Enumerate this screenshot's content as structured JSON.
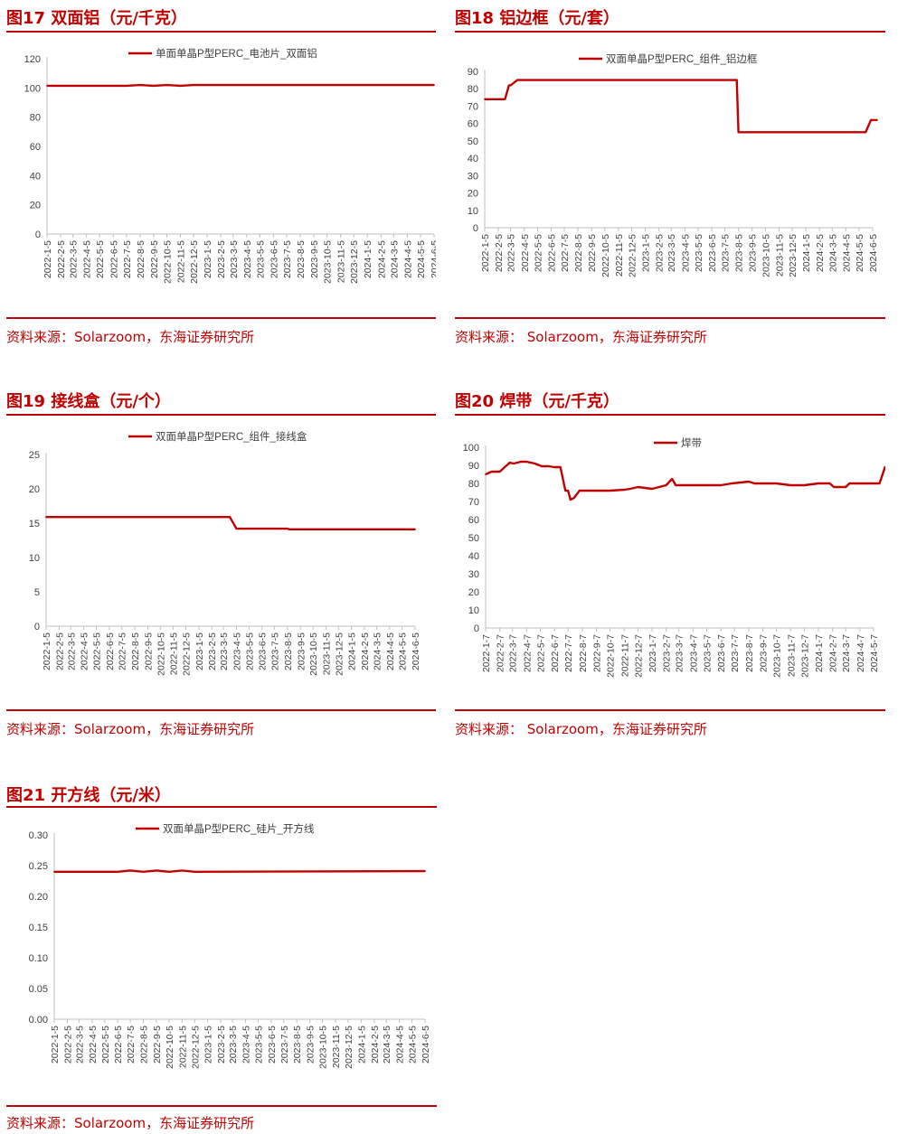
{
  "source_label": "资料来源：Solarzoom，东海证券研究所",
  "source_label_spaced": "资料来源：  Solarzoom，东海证券研究所",
  "colors": {
    "accent": "#c00000",
    "axis": "#bfbfbf",
    "text": "#404040"
  },
  "charts": [
    {
      "id": "fig17",
      "title": "图17  双面铝（元/千克）",
      "chart_data": {
        "type": "line",
        "series": [
          {
            "name": "单面单晶P型PERC_电池片_双面铝",
            "x": [
              "2022-1-5",
              "2022-7-5",
              "2022-8-5",
              "2022-9-5",
              "2022-10-5",
              "2022-11-5",
              "2022-12-5",
              "2024-6-5"
            ],
            "y": [
              101.5,
              101.5,
              102,
              101.5,
              102,
              101.5,
              102,
              102
            ]
          }
        ],
        "ylim": [
          0,
          120
        ],
        "yticks": [
          0,
          20,
          40,
          60,
          80,
          100,
          120
        ],
        "xticks": [
          "2022-1-5",
          "2022-2-5",
          "2022-3-5",
          "2022-4-5",
          "2022-5-5",
          "2022-6-5",
          "2022-7-5",
          "2022-8-5",
          "2022-9-5",
          "2022-10-5",
          "2022-11-5",
          "2022-12-5",
          "2023-1-5",
          "2023-2-5",
          "2023-3-5",
          "2023-4-5",
          "2023-5-5",
          "2023-6-5",
          "2023-7-5",
          "2023-8-5",
          "2023-9-5",
          "2023-10-5",
          "2023-11-5",
          "2023-12-5",
          "2024-1-5",
          "2024-2-5",
          "2024-3-5",
          "2024-4-5",
          "2024-5-5",
          "2024-6-5"
        ],
        "legend": "top"
      }
    },
    {
      "id": "fig18",
      "title": "图18  铝边框（元/套）",
      "chart_data": {
        "type": "line",
        "series": [
          {
            "name": "双面单晶P型PERC_组件_铝边框",
            "x": [
              "2022-1-5",
              "2022-2-20",
              "2022-3-1",
              "2022-3-5",
              "2022-3-20",
              "2023-8-1",
              "2023-8-5",
              "2024-5-20",
              "2024-6-1",
              "2024-6-15"
            ],
            "y": [
              74,
              74,
              82,
              82,
              85,
              85,
              55,
              55,
              62,
              62
            ]
          }
        ],
        "ylim": [
          0,
          90
        ],
        "yticks": [
          0,
          10,
          20,
          30,
          40,
          50,
          60,
          70,
          80,
          90
        ],
        "xticks": [
          "2022-1-5",
          "2022-2-5",
          "2022-3-5",
          "2022-4-5",
          "2022-5-5",
          "2022-6-5",
          "2022-7-5",
          "2022-8-5",
          "2022-9-5",
          "2022-10-5",
          "2022-11-5",
          "2022-12-5",
          "2023-1-5",
          "2023-2-5",
          "2023-3-5",
          "2023-4-5",
          "2023-5-5",
          "2023-6-5",
          "2023-7-5",
          "2023-8-5",
          "2023-9-5",
          "2023-10-5",
          "2023-11-5",
          "2023-12-5",
          "2024-1-5",
          "2024-2-5",
          "2024-3-5",
          "2024-4-5",
          "2024-5-5",
          "2024-6-5"
        ],
        "legend": "top"
      }
    },
    {
      "id": "fig19",
      "title": "图19  接线盒（元/个）",
      "chart_data": {
        "type": "line",
        "series": [
          {
            "name": "双面单晶P型PERC_组件_接线盒",
            "x": [
              "2022-1-5",
              "2023-3-20",
              "2023-4-5",
              "2023-8-5",
              "2023-8-10",
              "2024-6-5"
            ],
            "y": [
              15.9,
              15.9,
              14.2,
              14.2,
              14.1,
              14.1
            ]
          }
        ],
        "ylim": [
          0,
          25
        ],
        "yticks": [
          0,
          5,
          10,
          15,
          20,
          25
        ],
        "xticks": [
          "2022-1-5",
          "2022-2-5",
          "2022-3-5",
          "2022-4-5",
          "2022-5-5",
          "2022-6-5",
          "2022-7-5",
          "2022-8-5",
          "2022-9-5",
          "2022-10-5",
          "2022-11-5",
          "2022-12-5",
          "2023-1-5",
          "2023-2-5",
          "2023-3-5",
          "2023-4-5",
          "2023-5-5",
          "2023-6-5",
          "2023-7-5",
          "2023-8-5",
          "2023-9-5",
          "2023-10-5",
          "2023-11-5",
          "2023-12-5",
          "2024-1-5",
          "2024-2-5",
          "2024-3-5",
          "2024-4-5",
          "2024-5-5",
          "2024-6-5"
        ],
        "legend": "top"
      }
    },
    {
      "id": "fig20",
      "title": "图20  焊带（元/千克）",
      "chart_data": {
        "type": "line",
        "series": [
          {
            "name": "焊带",
            "x": [
              "2022-1-7",
              "2022-1-20",
              "2022-2-7",
              "2022-3-1",
              "2022-3-10",
              "2022-3-25",
              "2022-4-7",
              "2022-4-25",
              "2022-5-10",
              "2022-5-25",
              "2022-6-7",
              "2022-6-20",
              "2022-7-1",
              "2022-7-7",
              "2022-7-12",
              "2022-7-20",
              "2022-8-1",
              "2022-8-7",
              "2022-10-7",
              "2022-11-7",
              "2022-11-20",
              "2022-12-7",
              "2023-1-7",
              "2023-2-7",
              "2023-2-20",
              "2023-2-28",
              "2023-3-7",
              "2023-4-7",
              "2023-6-7",
              "2023-7-1",
              "2023-8-7",
              "2023-8-20",
              "2023-9-1",
              "2023-10-7",
              "2023-11-7",
              "2023-12-7",
              "2024-1-7",
              "2024-2-1",
              "2024-2-10",
              "2024-3-7",
              "2024-3-15",
              "2024-5-20",
              "2024-6-1",
              "2024-6-15"
            ],
            "y": [
              85,
              86.5,
              86.5,
              91.5,
              91,
              92,
              92,
              91,
              89.5,
              89.5,
              89,
              89,
              76,
              76,
              71,
              72,
              76,
              76,
              76,
              76.5,
              77,
              78,
              77,
              79,
              82.5,
              79,
              79,
              79,
              79,
              80,
              81,
              80,
              80,
              80,
              79,
              79,
              80,
              80,
              78,
              78,
              80,
              80,
              89,
              89
            ]
          }
        ],
        "ylim": [
          0,
          100
        ],
        "yticks": [
          0,
          10,
          20,
          30,
          40,
          50,
          60,
          70,
          80,
          90,
          100
        ],
        "xticks": [
          "2022-1-7",
          "2022-2-7",
          "2022-3-7",
          "2022-4-7",
          "2022-5-7",
          "2022-6-7",
          "2022-7-7",
          "2022-8-7",
          "2022-9-7",
          "2022-10-7",
          "2022-11-7",
          "2022-12-7",
          "2023-1-7",
          "2023-2-7",
          "2023-3-7",
          "2023-4-7",
          "2023-5-7",
          "2023-6-7",
          "2023-7-7",
          "2023-8-7",
          "2023-9-7",
          "2023-10-7",
          "2023-11-7",
          "2023-12-7",
          "2024-1-7",
          "2024-2-7",
          "2024-3-7",
          "2024-4-7",
          "2024-5-7"
        ],
        "legend": "top"
      }
    },
    {
      "id": "fig21",
      "title": "图21  开方线（元/米）",
      "chart_data": {
        "type": "line",
        "series": [
          {
            "name": "双面单晶P型PERC_硅片_开方线",
            "x": [
              "2022-1-5",
              "2022-6-5",
              "2022-7-5",
              "2022-8-5",
              "2022-9-5",
              "2022-10-5",
              "2022-11-5",
              "2022-12-5",
              "2024-6-5"
            ],
            "y": [
              0.24,
              0.24,
              0.242,
              0.24,
              0.242,
              0.24,
              0.242,
              0.24,
              0.241
            ]
          }
        ],
        "ylim": [
          0,
          0.3
        ],
        "yticks": [
          "0.00",
          "0.05",
          "0.10",
          "0.15",
          "0.20",
          "0.25",
          "0.30"
        ],
        "xticks": [
          "2022-1-5",
          "2022-2-5",
          "2022-3-5",
          "2022-4-5",
          "2022-5-5",
          "2022-6-5",
          "2022-7-5",
          "2022-8-5",
          "2022-9-5",
          "2022-10-5",
          "2022-11-5",
          "2022-12-5",
          "2023-1-5",
          "2023-2-5",
          "2023-3-5",
          "2023-4-5",
          "2023-5-5",
          "2023-6-5",
          "2023-7-5",
          "2023-8-5",
          "2023-9-5",
          "2023-10-5",
          "2023-11-5",
          "2023-12-5",
          "2024-1-5",
          "2024-2-5",
          "2024-3-5",
          "2024-4-5",
          "2024-5-5",
          "2024-6-5"
        ],
        "legend": "top"
      }
    }
  ]
}
